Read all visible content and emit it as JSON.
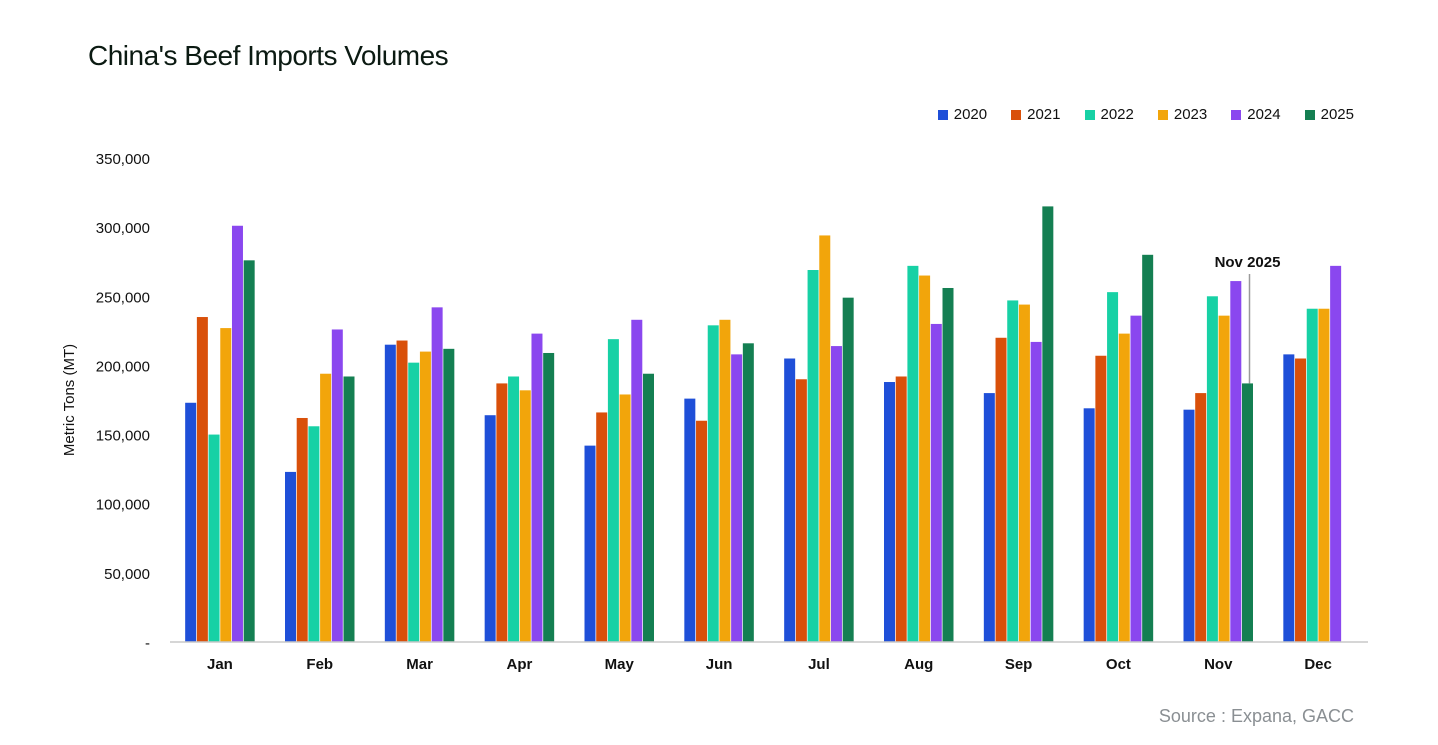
{
  "title": "China's Beef Imports Volumes",
  "source": "Source : Expana, GACC",
  "chart_data": {
    "type": "bar",
    "title": "China's Beef Imports Volumes",
    "xlabel": "",
    "ylabel": "Metric Tons (MT)",
    "ylim": [
      0,
      350000
    ],
    "yticks": [
      0,
      50000,
      100000,
      150000,
      200000,
      250000,
      300000,
      350000
    ],
    "ytick_labels": [
      "-",
      "50,000",
      "100,000",
      "150,000",
      "200,000",
      "250,000",
      "300,000",
      "350,000"
    ],
    "categories": [
      "Jan",
      "Feb",
      "Mar",
      "Apr",
      "May",
      "Jun",
      "Jul",
      "Aug",
      "Sep",
      "Oct",
      "Nov",
      "Dec"
    ],
    "legend_position": "top-right",
    "grid": false,
    "series": [
      {
        "name": "2020",
        "color": "#1f4fd8",
        "values": [
          173000,
          123000,
          215000,
          164000,
          142000,
          176000,
          205000,
          188000,
          180000,
          169000,
          168000,
          208000
        ]
      },
      {
        "name": "2021",
        "color": "#d9500a",
        "values": [
          235000,
          162000,
          218000,
          187000,
          166000,
          160000,
          190000,
          192000,
          220000,
          207000,
          180000,
          205000
        ]
      },
      {
        "name": "2022",
        "color": "#17d1a5",
        "values": [
          150000,
          156000,
          202000,
          192000,
          219000,
          229000,
          269000,
          272000,
          247000,
          253000,
          250000,
          241000
        ]
      },
      {
        "name": "2023",
        "color": "#f2a50b",
        "values": [
          227000,
          194000,
          210000,
          182000,
          179000,
          233000,
          294000,
          265000,
          244000,
          223000,
          236000,
          241000
        ]
      },
      {
        "name": "2024",
        "color": "#8a47ef",
        "values": [
          301000,
          226000,
          242000,
          223000,
          233000,
          208000,
          214000,
          230000,
          217000,
          236000,
          261000,
          272000
        ]
      },
      {
        "name": "2025",
        "color": "#147f52",
        "values": [
          276000,
          192000,
          212000,
          209000,
          194000,
          216000,
          249000,
          256000,
          315000,
          280000,
          187000,
          null
        ]
      }
    ],
    "annotations": [
      {
        "text": "Nov 2025",
        "category": "Nov",
        "series": "2025"
      }
    ]
  }
}
